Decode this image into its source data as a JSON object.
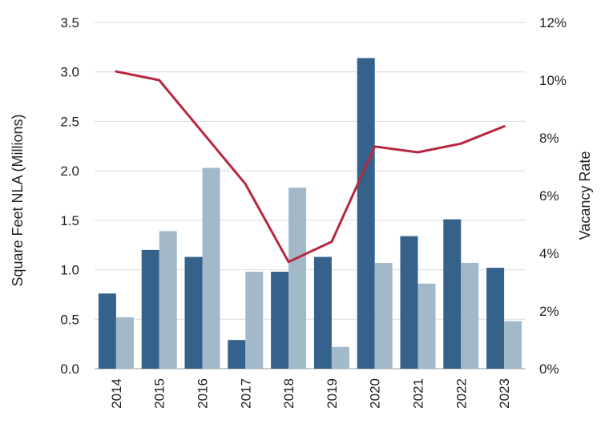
{
  "chart_data": {
    "type": "bar",
    "categories": [
      "2014",
      "2015",
      "2016",
      "2017",
      "2018",
      "2019",
      "2020",
      "2021",
      "2022",
      "2023"
    ],
    "series": [
      {
        "type": "bar",
        "axis": "left",
        "color": "#34628a",
        "values": [
          0.76,
          1.2,
          1.13,
          0.29,
          0.98,
          1.13,
          3.14,
          1.34,
          1.51,
          1.02
        ]
      },
      {
        "type": "bar",
        "axis": "left",
        "color": "#a2b9ca",
        "values": [
          0.52,
          1.39,
          2.03,
          0.98,
          1.83,
          0.22,
          1.07,
          0.86,
          1.07,
          0.48
        ]
      },
      {
        "type": "line",
        "axis": "right",
        "color": "#b5283f",
        "values": [
          10.3,
          10.0,
          8.2,
          6.4,
          3.7,
          4.4,
          7.7,
          7.5,
          7.8,
          8.4
        ]
      }
    ],
    "ylabel": "Square Feet NLA (Millions)",
    "y2label": "Vacancy Rate",
    "ylim": [
      0,
      3.5
    ],
    "y2lim": [
      0,
      12
    ],
    "yticks": [
      "0.0",
      "0.5",
      "1.0",
      "1.5",
      "2.0",
      "2.5",
      "3.0",
      "3.5"
    ],
    "y2ticks": [
      "0%",
      "2%",
      "4%",
      "6%",
      "8%",
      "10%",
      "12%"
    ],
    "grid": true
  }
}
